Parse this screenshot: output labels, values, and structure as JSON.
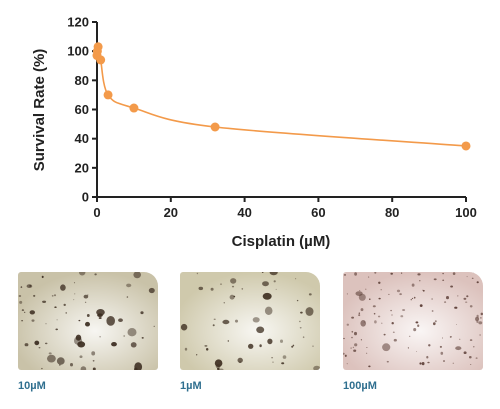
{
  "chart_data": {
    "type": "line",
    "title": "",
    "xlabel": "Cisplatin (µM)",
    "ylabel": "Survival Rate (%)",
    "xlim": [
      0,
      100
    ],
    "ylim": [
      0,
      120
    ],
    "x_ticks": [
      0,
      20,
      40,
      60,
      80,
      100
    ],
    "y_ticks": [
      0,
      20,
      40,
      60,
      80,
      100,
      120
    ],
    "grid": false,
    "legend": "none",
    "series": [
      {
        "color": "#f39a4a",
        "points": [
          {
            "x": 0,
            "y": 97
          },
          {
            "x": 0.1,
            "y": 100
          },
          {
            "x": 0.3,
            "y": 103
          },
          {
            "x": 1,
            "y": 94
          },
          {
            "x": 3,
            "y": 70
          },
          {
            "x": 10,
            "y": 61
          },
          {
            "x": 32,
            "y": 48
          },
          {
            "x": 100,
            "y": 35
          }
        ]
      }
    ]
  },
  "images": [
    {
      "caption": "10µM",
      "tint": "#c9c2a8"
    },
    {
      "caption": "1µM",
      "tint": "#cfc9ac"
    },
    {
      "caption": "100µM",
      "tint": "#dcc2bd"
    }
  ]
}
